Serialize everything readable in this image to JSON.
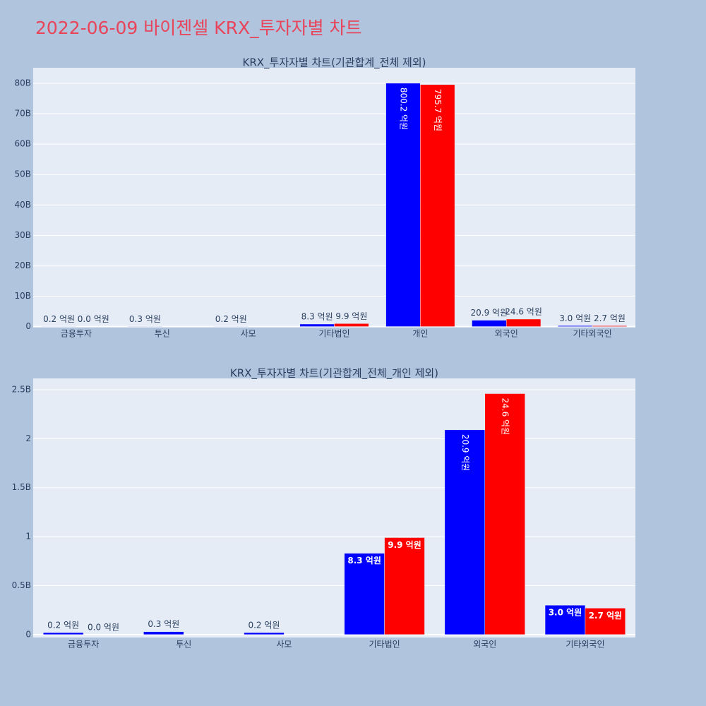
{
  "title": "2022-06-09 바이젠셀 KRX_투자자별 차트",
  "chart_data": [
    {
      "type": "bar",
      "title": "KRX_투자자별 차트(기관합계_전체 제외)",
      "categories": [
        "금융투자",
        "투신",
        "사모",
        "기타법인",
        "개인",
        "외국인",
        "기타외국인"
      ],
      "series": [
        {
          "color": "#0000ff",
          "values": [
            0.02,
            0.03,
            0.02,
            0.83,
            80.02,
            2.09,
            0.3
          ],
          "value_labels": [
            "0.2 억원",
            "0.3 억원",
            "0.2 억원",
            "8.3 억원",
            "800.2 억원",
            "20.9 억원",
            "3.0 억원"
          ]
        },
        {
          "color": "#ff0000",
          "values": [
            0.0,
            null,
            null,
            0.99,
            79.57,
            2.46,
            0.27
          ],
          "value_labels": [
            "0.0 억원",
            null,
            null,
            "9.9 억원",
            "795.7 억원",
            "24.6 억원",
            "2.7 억원"
          ]
        }
      ],
      "ylim": [
        -0.1,
        85.1
      ],
      "yticks": [
        0,
        {
          "value": 10,
          "label": "10B"
        },
        {
          "value": 20,
          "label": "20B"
        },
        {
          "value": 30,
          "label": "30B"
        },
        {
          "value": 40,
          "label": "40B"
        },
        {
          "value": 50,
          "label": "50B"
        },
        {
          "value": 60,
          "label": "60B"
        },
        {
          "value": 70,
          "label": "70B"
        },
        {
          "value": 80,
          "label": "80B"
        }
      ],
      "grid": true
    },
    {
      "type": "bar",
      "title": "KRX_투자자별 차트(기관합계_전체_개인 제외)",
      "categories": [
        "금융투자",
        "투신",
        "사모",
        "기타법인",
        "외국인",
        "기타외국인"
      ],
      "series": [
        {
          "color": "#0000ff",
          "values": [
            0.02,
            0.03,
            0.02,
            0.83,
            2.09,
            0.3
          ],
          "value_labels": [
            "0.2 억원",
            "0.3 억원",
            "0.2 억원",
            "8.3 억원",
            "20.9 억원",
            "3.0 억원"
          ]
        },
        {
          "color": "#ff0000",
          "values": [
            0.0,
            null,
            null,
            0.99,
            2.46,
            0.27
          ],
          "value_labels": [
            "0.0 억원",
            null,
            null,
            "9.9 억원",
            "24.6 억원",
            "2.7 억원"
          ]
        }
      ],
      "ylim": [
        -0.03,
        2.615
      ],
      "yticks": [
        0,
        {
          "value": 0.5,
          "label": "0.5B"
        },
        1,
        {
          "value": 1.5,
          "label": "1.5B"
        },
        2,
        {
          "value": 2.5,
          "label": "2.5B"
        }
      ],
      "grid": true
    }
  ]
}
